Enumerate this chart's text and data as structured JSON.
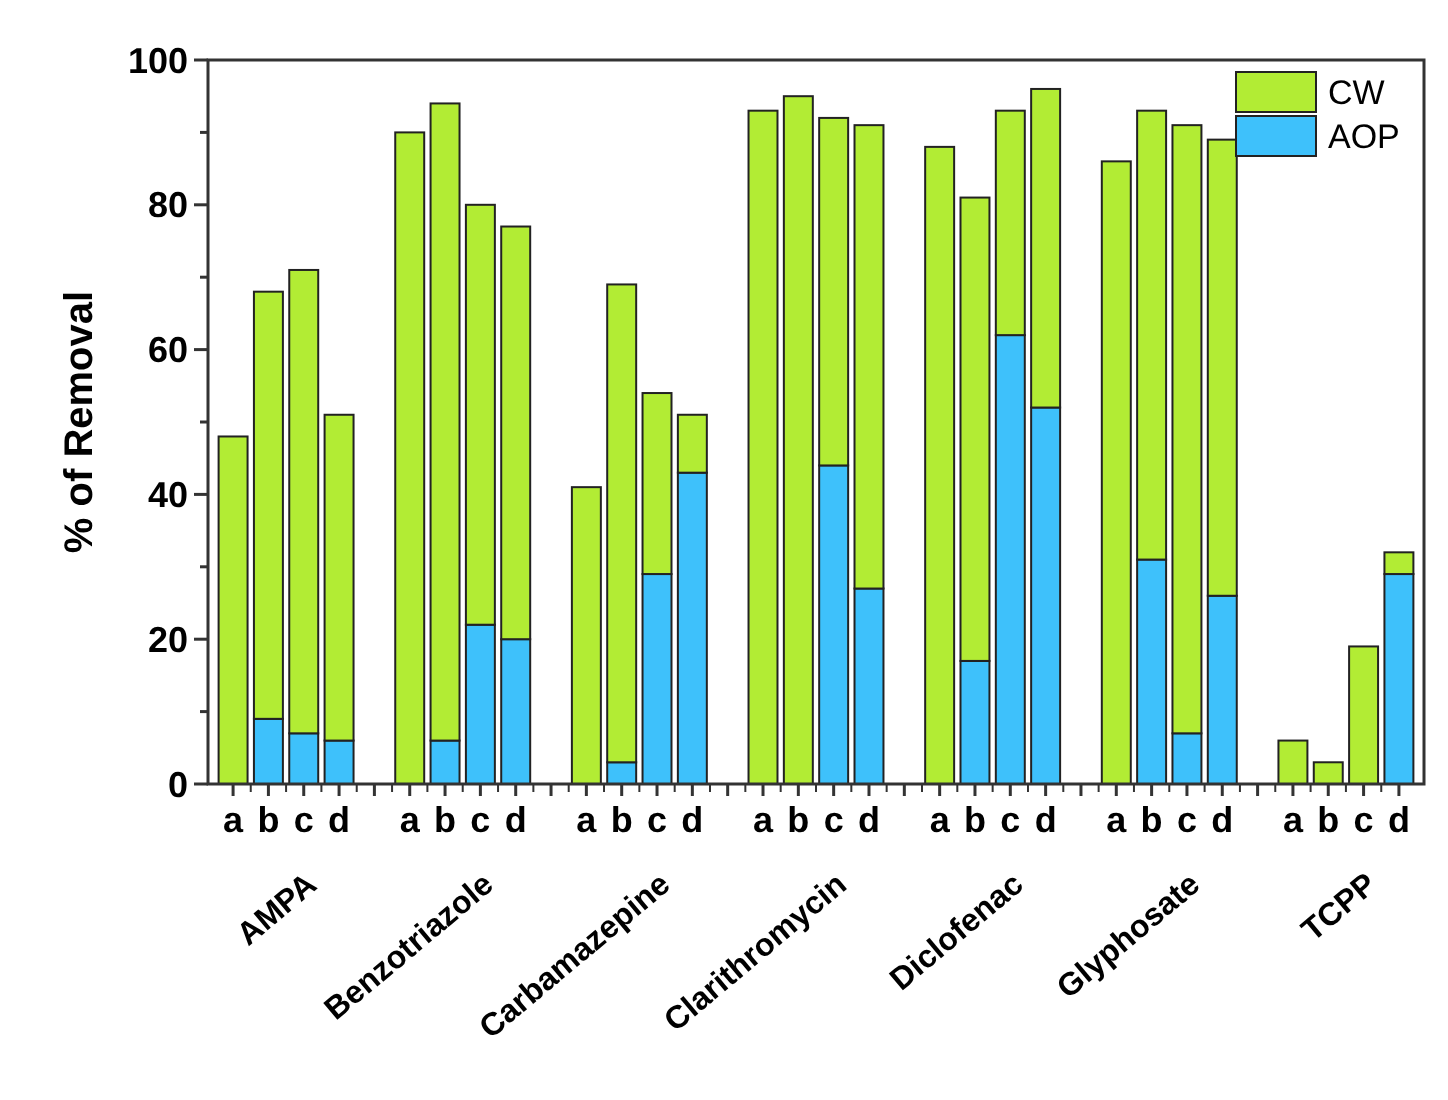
{
  "chart_data": {
    "type": "bar",
    "stacked": true,
    "ylabel": "% of Removal",
    "categories": [
      "a",
      "b",
      "c",
      "d",
      null,
      "a",
      "b",
      "c",
      "d",
      null,
      "a",
      "b",
      "c",
      "d",
      null,
      "a",
      "b",
      "c",
      "d",
      null,
      "a",
      "b",
      "c",
      "d",
      null,
      "a",
      "b",
      "c",
      "d",
      null,
      "a",
      "b",
      "c",
      "d"
    ],
    "series": [
      {
        "name": "AOP",
        "color": "#3ec1fb",
        "values": [
          0,
          9,
          7,
          6,
          null,
          0,
          6,
          22,
          20,
          null,
          0,
          3,
          29,
          43,
          null,
          0,
          0,
          44,
          27,
          null,
          0,
          17,
          62,
          52,
          null,
          0,
          31,
          7,
          26,
          null,
          0,
          0,
          0,
          29
        ]
      },
      {
        "name": "CW",
        "color": "#b2ec34",
        "values": [
          48,
          59,
          64,
          45,
          null,
          90,
          88,
          58,
          57,
          null,
          41,
          66,
          25,
          8,
          null,
          93,
          95,
          48,
          64,
          null,
          88,
          64,
          31,
          44,
          null,
          86,
          62,
          84,
          63,
          null,
          6,
          3,
          19,
          3
        ]
      }
    ],
    "ylim": [
      0,
      100
    ],
    "yticks": [
      0,
      {
        "value": 10,
        "label": null
      },
      20,
      {
        "value": 30,
        "label": null
      },
      40,
      {
        "value": 50,
        "label": null
      },
      60,
      {
        "value": 70,
        "label": null
      },
      80,
      {
        "value": 90,
        "label": null
      },
      100
    ],
    "grid": false,
    "legend": "top right",
    "annotations": [
      "AMPA",
      "Benzotriazole",
      "Carbamazepine",
      "Clarithromycin",
      "Diclofenac",
      "Glyphosate",
      "TCPP"
    ]
  }
}
